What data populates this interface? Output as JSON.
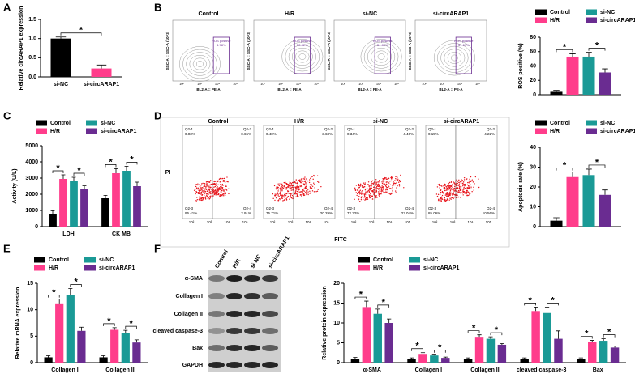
{
  "panels": [
    "A",
    "B",
    "C",
    "D",
    "E",
    "F"
  ],
  "chart_data": [
    {
      "type": "bar",
      "ylabel": "Relative circARAP1 expression",
      "categories": [
        "si-NC",
        "si-circARAP1"
      ],
      "values": [
        1.0,
        0.22
      ],
      "errors": [
        0.04,
        0.09
      ],
      "colors": [
        "#000000",
        "#ff3d8b"
      ],
      "ylim": [
        0,
        1.5
      ],
      "yticks": [
        {
          "value": 0,
          "label": "0.0"
        },
        {
          "value": 0.5,
          "label": "0.5"
        },
        {
          "value": 1,
          "label": "1.0"
        },
        {
          "value": 1.5,
          "label": "1.5"
        }
      ],
      "annotations": [
        "*"
      ]
    },
    {
      "type": "bar",
      "ylabel": "ROS positive (%)",
      "categories": [
        null
      ],
      "series": [
        {
          "name": "Control",
          "color": "#000000",
          "values": [
            4
          ],
          "errors": [
            2
          ]
        },
        {
          "name": "H/R",
          "color": "#ff3d8b",
          "values": [
            53
          ],
          "errors": [
            4
          ]
        },
        {
          "name": "si-NC",
          "color": "#1a9a96",
          "values": [
            53
          ],
          "errors": [
            6
          ]
        },
        {
          "name": "si-circARAP1",
          "color": "#6a2c91",
          "values": [
            31
          ],
          "errors": [
            5
          ]
        }
      ],
      "ylim": [
        0,
        80
      ],
      "yticks": [
        0,
        20,
        40,
        60,
        80
      ],
      "annotations": [
        "*",
        "*"
      ]
    },
    {
      "type": "bar",
      "ylabel": "Activity (U/L)",
      "categories": [
        "LDH",
        "CK MB"
      ],
      "series": [
        {
          "name": "Control",
          "color": "#000000",
          "values": [
            800,
            1750
          ],
          "errors": [
            180,
            180
          ]
        },
        {
          "name": "H/R",
          "color": "#ff3d8b",
          "values": [
            2950,
            3300
          ],
          "errors": [
            250,
            280
          ]
        },
        {
          "name": "si-NC",
          "color": "#1a9a96",
          "values": [
            2800,
            3450
          ],
          "errors": [
            250,
            280
          ]
        },
        {
          "name": "si-circARAP1",
          "color": "#6a2c91",
          "values": [
            2300,
            2500
          ],
          "errors": [
            220,
            250
          ]
        }
      ],
      "ylim": [
        0,
        5000
      ],
      "yticks": [
        0,
        1000,
        2000,
        3000,
        4000,
        5000
      ],
      "annotations": [
        "*",
        "*",
        "*",
        "*"
      ]
    },
    {
      "type": "bar",
      "ylabel": "Apoptosis rate (%)",
      "categories": [
        null
      ],
      "series": [
        {
          "name": "Control",
          "color": "#000000",
          "values": [
            3
          ],
          "errors": [
            1.5
          ]
        },
        {
          "name": "H/R",
          "color": "#ff3d8b",
          "values": [
            25
          ],
          "errors": [
            2.5
          ]
        },
        {
          "name": "si-NC",
          "color": "#1a9a96",
          "values": [
            26
          ],
          "errors": [
            3
          ]
        },
        {
          "name": "si-circARAP1",
          "color": "#6a2c91",
          "values": [
            16
          ],
          "errors": [
            2.5
          ]
        }
      ],
      "ylim": [
        0,
        40
      ],
      "yticks": [
        0,
        10,
        20,
        30,
        40
      ],
      "annotations": [
        "*",
        "*"
      ]
    },
    {
      "type": "bar",
      "ylabel": "Relative mRNA expression",
      "categories": [
        "Collagen I",
        "Collagen II"
      ],
      "series": [
        {
          "name": "Control",
          "color": "#000000",
          "values": [
            1,
            1
          ],
          "errors": [
            0.3,
            0.3
          ]
        },
        {
          "name": "H/R",
          "color": "#ff3d8b",
          "values": [
            11.2,
            6.2
          ],
          "errors": [
            0.8,
            0.4
          ]
        },
        {
          "name": "si-NC",
          "color": "#1a9a96",
          "values": [
            12.8,
            5.6
          ],
          "errors": [
            1.2,
            0.5
          ]
        },
        {
          "name": "si-circARAP1",
          "color": "#6a2c91",
          "values": [
            6,
            3.8
          ],
          "errors": [
            0.7,
            0.5
          ]
        }
      ],
      "ylim": [
        0,
        15
      ],
      "yticks": [
        0,
        5,
        10,
        15
      ],
      "annotations": [
        "*",
        "*",
        "*",
        "*"
      ]
    },
    {
      "type": "bar",
      "ylabel": "Relative protein expression",
      "categories": [
        "α-SMA",
        "Collagen I",
        "Collagen II",
        "cleaved caspase-3",
        "Bax"
      ],
      "series": [
        {
          "name": "Control",
          "color": "#000000",
          "values": [
            1,
            1,
            1,
            1,
            1
          ],
          "errors": [
            0.3,
            0.2,
            0.2,
            0.2,
            0.2
          ]
        },
        {
          "name": "H/R",
          "color": "#ff3d8b",
          "values": [
            14,
            2.2,
            6.5,
            13,
            5.2
          ],
          "errors": [
            1.5,
            0.3,
            0.5,
            1,
            0.4
          ]
        },
        {
          "name": "si-NC",
          "color": "#1a9a96",
          "values": [
            12.3,
            1.8,
            6,
            12.5,
            5.5
          ],
          "errors": [
            1.2,
            0.3,
            0.5,
            1.5,
            0.5
          ]
        },
        {
          "name": "si-circARAP1",
          "color": "#6a2c91",
          "values": [
            10,
            1.2,
            4.5,
            6,
            3.8
          ],
          "errors": [
            1,
            0.2,
            0.3,
            2,
            0.4
          ]
        }
      ],
      "ylim": [
        0,
        20
      ],
      "yticks": [
        0,
        5,
        10,
        15,
        20
      ],
      "annotations": [
        "*",
        "*",
        "*",
        "*",
        "*",
        "*",
        "*",
        "*",
        "*",
        "*"
      ]
    }
  ],
  "flow_ros": {
    "titles": [
      "Control",
      "H/R",
      "si-NC",
      "si-circARAP1"
    ],
    "gate": "ROS positive",
    "percent": [
      "4.78%",
      "53.82%",
      "54.82%",
      "31.09%"
    ],
    "xlabel": "BL2-A :: PE-A",
    "ylabel": "SSC-A :: SSC-A (10^3)",
    "ticks": [
      "10²",
      "10³",
      "10⁴",
      "10⁵"
    ]
  },
  "flow_apoptosis": {
    "titles": [
      "Control",
      "H/R",
      "si-NC",
      "si-circARAP1"
    ],
    "quadrants": [
      "Q2-1",
      "Q2-2",
      "Q2-3",
      "Q2-4"
    ],
    "percent": [
      [
        "0.03%",
        "0.65%",
        "96.41%",
        "2.91%"
      ],
      [
        "0.40%",
        "3.68%",
        "75.71%",
        "20.29%"
      ],
      [
        "0.34%",
        "4.46%",
        "72.22%",
        "23.04%"
      ],
      [
        "0.15%",
        "4.22%",
        "85.06%",
        "10.56%"
      ]
    ],
    "xlabel": "FITC",
    "ylabel": "PI",
    "ticks": [
      "10²",
      "10³",
      "10⁴",
      "10⁵"
    ]
  },
  "blot": {
    "lanes": [
      "Control",
      "H/R",
      "si-NC",
      "si-circARAP1"
    ],
    "rows": [
      "α-SMA",
      "Collagen I",
      "Collagen II",
      "cleaved caspase-3",
      "Bax",
      "GAPDH"
    ]
  }
}
